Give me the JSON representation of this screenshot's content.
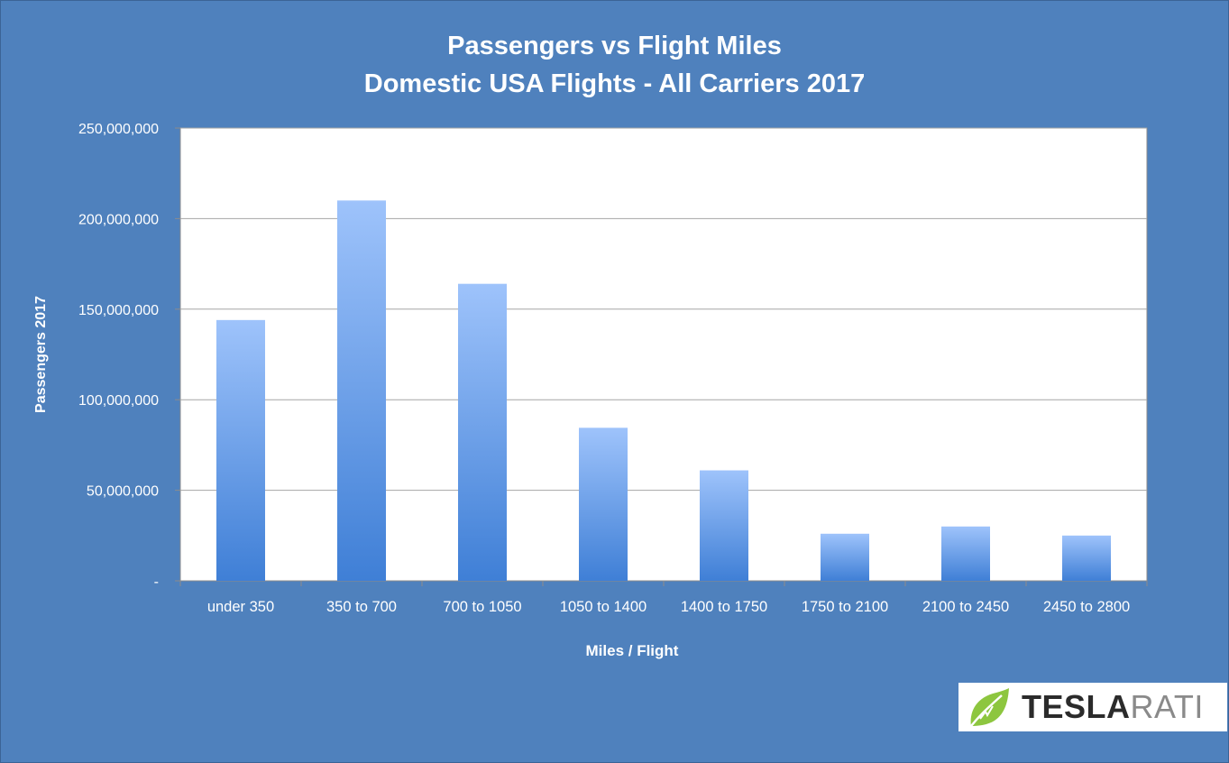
{
  "chart_data": {
    "type": "bar",
    "title_lines": [
      "Passengers vs Flight Miles",
      "Domestic USA Flights - All Carriers 2017"
    ],
    "xlabel": "Miles / Flight",
    "ylabel": "Passengers 2017",
    "categories": [
      "under 350",
      "350 to 700",
      "700 to 1050",
      "1050 to 1400",
      "1400 to 1750",
      "1750 to 2100",
      "2100 to 2450",
      "2450 to 2800"
    ],
    "values": [
      144000000,
      210000000,
      164000000,
      84500000,
      61000000,
      26000000,
      30000000,
      25000000
    ],
    "ylim": [
      0,
      250000000
    ],
    "yticks": [
      0,
      50000000,
      100000000,
      150000000,
      200000000,
      250000000
    ],
    "ytick_labels": [
      "-",
      "50,000,000",
      "100,000,000",
      "150,000,000",
      "200,000,000",
      "250,000,000"
    ],
    "grid": true,
    "legend": "none",
    "colors": {
      "background": "#4f81bd",
      "plot_area": "#ffffff",
      "bar_top": "#9ec3fb",
      "bar_bottom": "#3f7fd6",
      "gridline": "#a6a6a6",
      "text": "#ffffff"
    }
  },
  "logo": {
    "text_bold": "TESLA",
    "text_light": "RATI",
    "icon": "leaf-icon"
  }
}
